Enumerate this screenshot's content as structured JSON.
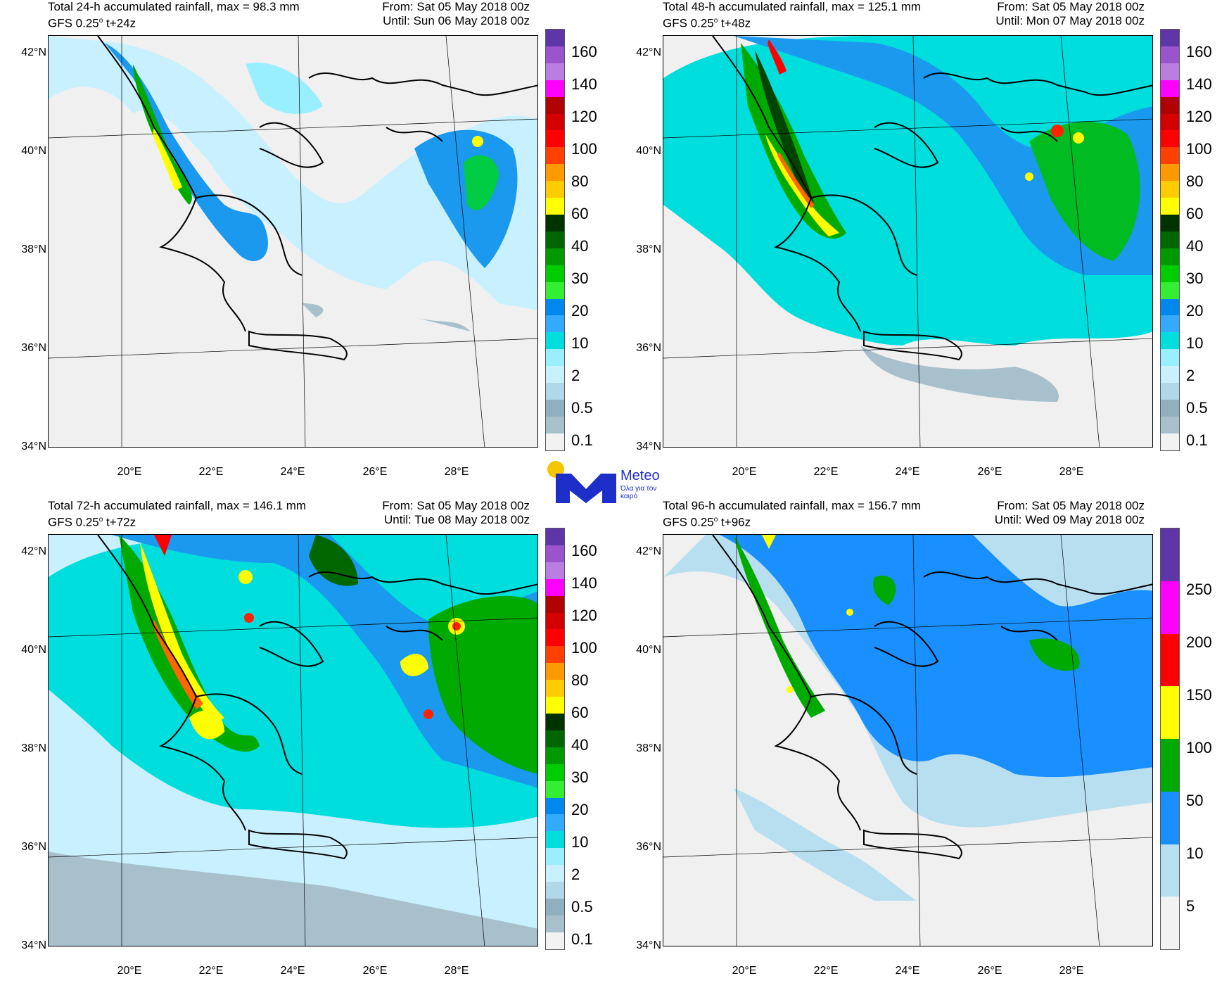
{
  "panels": [
    {
      "title": "Total 24-h accumulated rainfall, max = 98.3 mm",
      "model": "GFS 0.25",
      "deg": "o",
      "step": " t+24z",
      "from": "From: Sat 05 May 2018 00z",
      "until": "Until: Sun 06 May 2018 00z",
      "colorbar_labels": [
        "160",
        "140",
        "120",
        "100",
        "80",
        "60",
        "40",
        "30",
        "20",
        "10",
        "2",
        "0.5",
        "0.1"
      ]
    },
    {
      "title": "Total 48-h accumulated rainfall, max = 125.1 mm",
      "model": "GFS 0.25",
      "deg": "o",
      "step": " t+48z",
      "from": "From: Sat 05 May 2018 00z",
      "until": "Until: Mon 07 May 2018 00z",
      "colorbar_labels": [
        "160",
        "140",
        "120",
        "100",
        "80",
        "60",
        "40",
        "30",
        "20",
        "10",
        "2",
        "0.5",
        "0.1"
      ]
    },
    {
      "title": "Total 72-h accumulated rainfall, max = 146.1 mm",
      "model": "GFS 0.25",
      "deg": "o",
      "step": " t+72z",
      "from": "From: Sat 05 May 2018 00z",
      "until": "Until: Tue 08 May 2018 00z",
      "colorbar_labels": [
        "160",
        "140",
        "120",
        "100",
        "80",
        "60",
        "40",
        "30",
        "20",
        "10",
        "2",
        "0.5",
        "0.1"
      ]
    },
    {
      "title": "Total 96-h accumulated rainfall, max = 156.7 mm",
      "model": "GFS 0.25",
      "deg": "o",
      "step": " t+96z",
      "from": "From: Sat 05 May 2018 00z",
      "until": "Until: Wed 09 May 2018 00z",
      "colorbar_labels": [
        "250",
        "200",
        "150",
        "100",
        "50",
        "10",
        "5"
      ]
    }
  ],
  "lat_labels": [
    "42°N",
    "40°N",
    "38°N",
    "36°N",
    "34°N"
  ],
  "lon_labels": [
    "20°E",
    "22°E",
    "24°E",
    "26°E",
    "28°E"
  ],
  "colorbar_colors_standard": [
    "#5e36a8",
    "#9a55cc",
    "#b87fe0",
    "#ff00ff",
    "#b00000",
    "#d40000",
    "#ff0000",
    "#ff4000",
    "#ff9900",
    "#ffcc00",
    "#ffff00",
    "#003300",
    "#006600",
    "#009900",
    "#00cc00",
    "#33ee33",
    "#0088ee",
    "#33aaff",
    "#00dddd",
    "#99eeff",
    "#c8f0ff",
    "#b0d8e8",
    "#90b0c0",
    "#a8c0cc",
    "#f2f2f2"
  ],
  "colorbar_colors_96h": [
    "#5e36a8",
    "#ff00ff",
    "#ff0000",
    "#ffff00",
    "#00aa00",
    "#1a8fff",
    "#b8dff0",
    "#f2f2f2"
  ],
  "logo": {
    "name": "Meteo",
    "tagline": "Όλα για τον καιρό",
    "brand_color": "#1d2ec9",
    "sun_color": "#f6c500"
  }
}
